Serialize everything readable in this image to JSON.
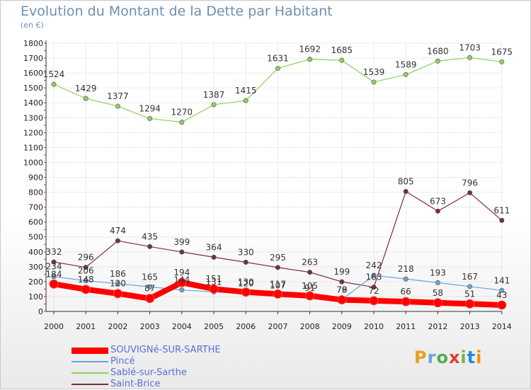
{
  "title": "Evolution du Montant de la Dette par Habitant",
  "subtitle": "(en €)",
  "brand": {
    "letters": [
      "P",
      "r",
      "o",
      "x",
      "i",
      "t",
      "i"
    ],
    "colors": [
      "#e8a020",
      "#6aa3d8",
      "#4caf50",
      "#e53935",
      "#7cb342",
      "#1e88e5",
      "#fb8c00"
    ]
  },
  "chart_data": {
    "type": "line",
    "title": "Evolution du Montant de la Dette par Habitant",
    "ylabel": "(en €)",
    "xlabel": "",
    "ylim": [
      0,
      1800
    ],
    "yticks": [
      0,
      100,
      200,
      300,
      400,
      500,
      600,
      700,
      800,
      900,
      1000,
      1100,
      1200,
      1300,
      1400,
      1500,
      1600,
      1700,
      1800
    ],
    "x": [
      2000,
      2001,
      2002,
      2003,
      2004,
      2005,
      2006,
      2007,
      2008,
      2009,
      2010,
      2011,
      2012,
      2013,
      2014
    ],
    "grid": true,
    "legend_position": "bottom-left",
    "series": [
      {
        "name": "SOUVIGNé-SUR-SARTHE",
        "color": "#ff0000",
        "values": [
          184,
          148,
          120,
          87,
          194,
          151,
          130,
          117,
          105,
          78,
          72,
          66,
          58,
          51,
          43
        ],
        "labels": [
          "184",
          "148",
          "120",
          "87",
          "194",
          "151",
          "130",
          "117",
          "105",
          "78",
          "72",
          "66",
          "58",
          "51",
          "43"
        ]
      },
      {
        "name": "Pincé",
        "color": "#6aa3d8",
        "values": [
          234,
          206,
          186,
          165,
          144,
          131,
          120,
          107,
          91,
          79,
          242,
          218,
          193,
          167,
          141
        ],
        "labels": [
          "234",
          "206",
          "186",
          "165",
          "144",
          "131",
          "120",
          "107",
          "91",
          "79",
          "242",
          "218",
          "193",
          "167",
          "141"
        ]
      },
      {
        "name": "Sablé-sur-Sarthe",
        "color": "#8ecf5f",
        "values": [
          1524,
          1429,
          1377,
          1294,
          1270,
          1387,
          1415,
          1631,
          1692,
          1685,
          1539,
          1589,
          1680,
          1703,
          1675
        ],
        "labels": [
          "1524",
          "1429",
          "1377",
          "1294",
          "1270",
          "1387",
          "1415",
          "1631",
          "1692",
          "1685",
          "1539",
          "1589",
          "1680",
          "1703",
          "1675"
        ]
      },
      {
        "name": "Saint-Brice",
        "color": "#7a2e38",
        "values": [
          332,
          296,
          474,
          435,
          399,
          364,
          330,
          295,
          263,
          199,
          163,
          805,
          673,
          796,
          611
        ],
        "labels": [
          "332",
          "296",
          "474",
          "435",
          "399",
          "364",
          "330",
          "295",
          "263",
          "199",
          "163",
          "805",
          "673",
          "796",
          "611"
        ]
      }
    ]
  }
}
